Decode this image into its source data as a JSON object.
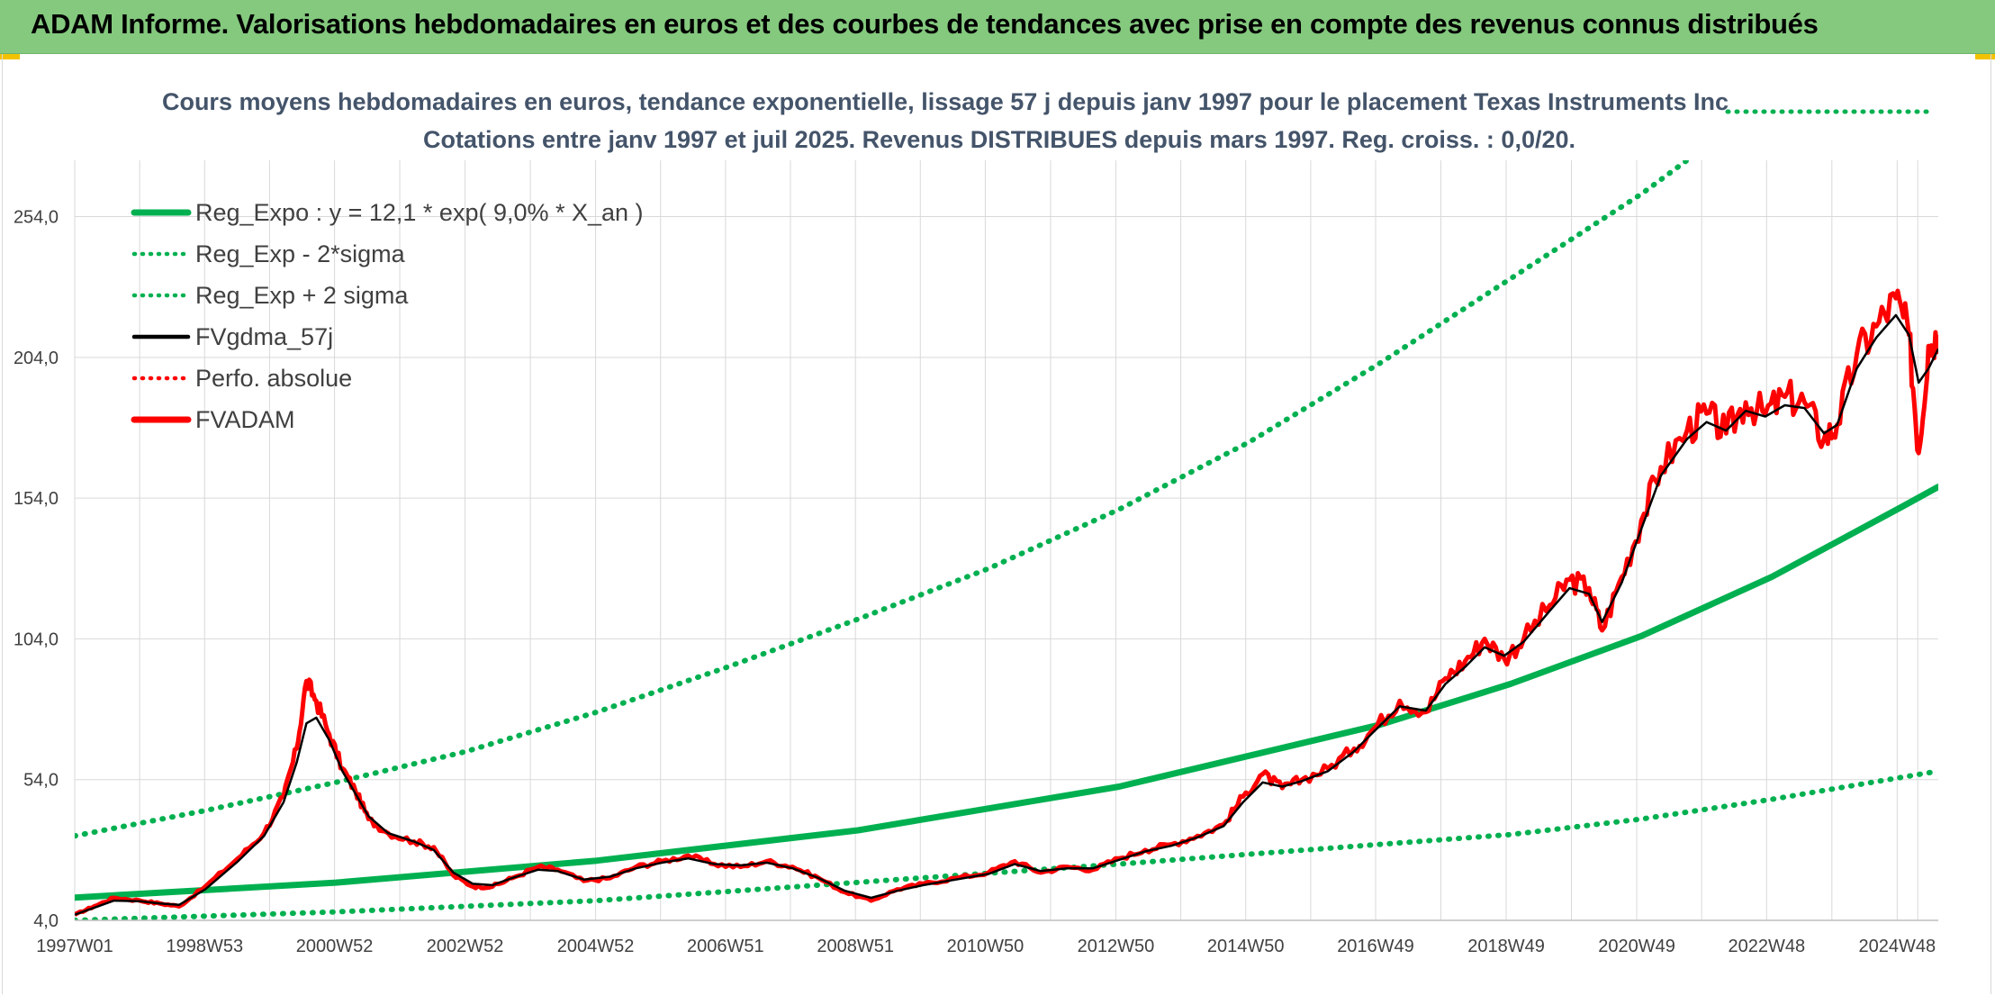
{
  "banner": {
    "title": "ADAM Informe. Valorisations hebdomadaires en euros et des courbes de tendances avec prise en compte des revenus connus distribués"
  },
  "colors": {
    "banner_bg": "#84c97e",
    "trend_green": "#00b050",
    "price_red": "#ff0000",
    "smooth_black": "#000000",
    "grid": "#d9d9d9",
    "title_text": "#44546a"
  },
  "chart_data": {
    "type": "line",
    "title_line1": "Cours moyens hebdomadaires en euros, tendance exponentielle, lissage 57 j depuis janv 1997 pour le placement Texas Instruments Inc",
    "title_line2": "Cotations entre janv 1997 et juil 2025. Revenus DISTRIBUES depuis mars 1997. Reg. croiss. : 0,0/20.",
    "xlabel": "",
    "ylabel": "",
    "x_range": [
      1997.0,
      2025.55
    ],
    "ylim": [
      4.0,
      274.0
    ],
    "y_ticks": [
      {
        "value": 4,
        "label": "4,0"
      },
      {
        "value": 54,
        "label": "54,0"
      },
      {
        "value": 104,
        "label": "104,0"
      },
      {
        "value": 154,
        "label": "154,0"
      },
      {
        "value": 204,
        "label": "204,0"
      },
      {
        "value": 254,
        "label": "254,0"
      }
    ],
    "x_ticks": [
      {
        "label": "1997W01",
        "x": 1997.0
      },
      {
        "label": "1998W53",
        "x": 1998.99
      },
      {
        "label": "2000W52",
        "x": 2000.98
      },
      {
        "label": "2002W52",
        "x": 2002.98
      },
      {
        "label": "2004W52",
        "x": 2004.98
      },
      {
        "label": "2006W51",
        "x": 2006.97
      },
      {
        "label": "2008W51",
        "x": 2008.96
      },
      {
        "label": "2010W50",
        "x": 2010.95
      },
      {
        "label": "2012W50",
        "x": 2012.95
      },
      {
        "label": "2014W50",
        "x": 2014.94
      },
      {
        "label": "2016W49",
        "x": 2016.93
      },
      {
        "label": "2018W49",
        "x": 2018.93
      },
      {
        "label": "2020W49",
        "x": 2020.93
      },
      {
        "label": "2022W48",
        "x": 2022.92
      },
      {
        "label": "2024W48",
        "x": 2024.92
      }
    ],
    "grid": true,
    "legend_position": "top-left",
    "legend": [
      {
        "label": "Reg_Expo : y = 12,1 * exp( 9,0% *  X_an )",
        "style": "solid-thick",
        "color": "#00b050"
      },
      {
        "label": "Reg_Exp - 2*sigma",
        "style": "dotted",
        "color": "#00b050"
      },
      {
        "label": "Reg_Exp + 2 sigma",
        "style": "dotted",
        "color": "#00b050"
      },
      {
        "label": "FVgdma_57j",
        "style": "solid",
        "color": "#000000"
      },
      {
        "label": "Perfo. absolue",
        "style": "dotted",
        "color": "#ff0000"
      },
      {
        "label": "FVADAM",
        "style": "solid-thick",
        "color": "#ff0000"
      }
    ],
    "series": [
      {
        "name": "Reg_Expo : y = 12,1 * exp( 9,0% *  X_an )",
        "points": [
          [
            1997.0,
            12.1
          ],
          [
            2001.0,
            17.4
          ],
          [
            2005.0,
            25.2
          ],
          [
            2009.0,
            36.0
          ],
          [
            2013.0,
            51.5
          ],
          [
            2017.0,
            73.5
          ],
          [
            2019.0,
            88.0
          ],
          [
            2021.0,
            105.0
          ],
          [
            2023.0,
            126.0
          ],
          [
            2025.0,
            151.0
          ],
          [
            2025.55,
            158.0
          ]
        ]
      },
      {
        "name": "Reg_Exp - 2*sigma",
        "points": [
          [
            1997.0,
            4.0
          ],
          [
            2001.0,
            7.0
          ],
          [
            2005.0,
            11.0
          ],
          [
            2009.0,
            17.5
          ],
          [
            2013.0,
            24.0
          ],
          [
            2017.0,
            31.0
          ],
          [
            2019.0,
            34.5
          ],
          [
            2021.0,
            40.0
          ],
          [
            2023.0,
            47.0
          ],
          [
            2025.55,
            57.0
          ]
        ]
      },
      {
        "name": "Reg_Exp + 2 sigma",
        "points": [
          [
            1997.0,
            34.0
          ],
          [
            1999.0,
            43.0
          ],
          [
            2001.0,
            53.0
          ],
          [
            2003.0,
            64.0
          ],
          [
            2005.0,
            78.0
          ],
          [
            2007.0,
            94.0
          ],
          [
            2009.0,
            111.0
          ],
          [
            2011.0,
            129.0
          ],
          [
            2013.0,
            150.0
          ],
          [
            2015.0,
            174.0
          ],
          [
            2017.0,
            202.0
          ],
          [
            2019.0,
            232.0
          ],
          [
            2021.0,
            262.0
          ],
          [
            2021.7,
            274.0
          ]
        ]
      },
      {
        "name": "FVADAM",
        "points": [
          [
            1997.0,
            6.0
          ],
          [
            1997.3,
            9.0
          ],
          [
            1997.6,
            12.0
          ],
          [
            1998.0,
            11.0
          ],
          [
            1998.3,
            10.0
          ],
          [
            1998.6,
            9.0
          ],
          [
            1999.0,
            16.0
          ],
          [
            1999.5,
            26.0
          ],
          [
            1999.9,
            35.0
          ],
          [
            2000.2,
            48.0
          ],
          [
            2000.4,
            65.0
          ],
          [
            2000.55,
            89.0
          ],
          [
            2000.7,
            82.0
          ],
          [
            2000.9,
            70.0
          ],
          [
            2001.1,
            58.0
          ],
          [
            2001.3,
            50.0
          ],
          [
            2001.5,
            40.0
          ],
          [
            2001.8,
            35.0
          ],
          [
            2002.2,
            32.0
          ],
          [
            2002.5,
            30.0
          ],
          [
            2002.8,
            20.0
          ],
          [
            2003.1,
            16.0
          ],
          [
            2003.4,
            16.0
          ],
          [
            2003.7,
            19.0
          ],
          [
            2004.1,
            23.0
          ],
          [
            2004.4,
            22.0
          ],
          [
            2004.8,
            18.0
          ],
          [
            2005.2,
            19.0
          ],
          [
            2005.6,
            23.0
          ],
          [
            2006.0,
            25.0
          ],
          [
            2006.4,
            27.0
          ],
          [
            2006.8,
            24.0
          ],
          [
            2007.2,
            23.0
          ],
          [
            2007.6,
            25.0
          ],
          [
            2008.0,
            23.0
          ],
          [
            2008.4,
            19.0
          ],
          [
            2008.8,
            14.0
          ],
          [
            2009.2,
            11.0
          ],
          [
            2009.6,
            15.0
          ],
          [
            2010.0,
            17.0
          ],
          [
            2010.5,
            19.0
          ],
          [
            2011.0,
            21.0
          ],
          [
            2011.4,
            25.0
          ],
          [
            2011.8,
            21.0
          ],
          [
            2012.2,
            23.0
          ],
          [
            2012.6,
            22.0
          ],
          [
            2013.0,
            26.0
          ],
          [
            2013.4,
            29.0
          ],
          [
            2013.8,
            31.0
          ],
          [
            2014.2,
            34.0
          ],
          [
            2014.6,
            38.0
          ],
          [
            2014.9,
            48.0
          ],
          [
            2015.2,
            56.0
          ],
          [
            2015.5,
            51.0
          ],
          [
            2015.8,
            54.0
          ],
          [
            2016.2,
            58.0
          ],
          [
            2016.6,
            65.0
          ],
          [
            2016.9,
            72.0
          ],
          [
            2017.3,
            82.0
          ],
          [
            2017.7,
            78.0
          ],
          [
            2018.0,
            90.0
          ],
          [
            2018.3,
            96.0
          ],
          [
            2018.6,
            104.0
          ],
          [
            2018.9,
            97.0
          ],
          [
            2019.2,
            104.0
          ],
          [
            2019.6,
            116.0
          ],
          [
            2019.9,
            125.0
          ],
          [
            2020.2,
            122.0
          ],
          [
            2020.4,
            107.0
          ],
          [
            2020.7,
            126.0
          ],
          [
            2021.0,
            146.0
          ],
          [
            2021.3,
            165.0
          ],
          [
            2021.7,
            178.0
          ],
          [
            2022.0,
            184.0
          ],
          [
            2022.3,
            177.0
          ],
          [
            2022.6,
            188.0
          ],
          [
            2022.9,
            184.0
          ],
          [
            2023.2,
            190.0
          ],
          [
            2023.5,
            188.0
          ],
          [
            2023.8,
            175.0
          ],
          [
            2024.0,
            180.0
          ],
          [
            2024.3,
            205.0
          ],
          [
            2024.6,
            215.0
          ],
          [
            2024.9,
            225.0
          ],
          [
            2025.1,
            212.0
          ],
          [
            2025.25,
            170.0
          ],
          [
            2025.4,
            208.0
          ],
          [
            2025.55,
            212.0
          ]
        ]
      },
      {
        "name": "FVgdma_57j",
        "points": [
          [
            1997.0,
            6.0
          ],
          [
            1997.3,
            8.5
          ],
          [
            1997.6,
            11.0
          ],
          [
            1998.0,
            10.8
          ],
          [
            1998.3,
            10.0
          ],
          [
            1998.6,
            9.5
          ],
          [
            1999.0,
            15.0
          ],
          [
            1999.5,
            25.0
          ],
          [
            1999.9,
            34.0
          ],
          [
            2000.2,
            46.0
          ],
          [
            2000.4,
            60.0
          ],
          [
            2000.55,
            74.0
          ],
          [
            2000.7,
            76.0
          ],
          [
            2000.9,
            68.0
          ],
          [
            2001.1,
            57.0
          ],
          [
            2001.3,
            49.0
          ],
          [
            2001.5,
            41.0
          ],
          [
            2001.8,
            35.0
          ],
          [
            2002.2,
            32.0
          ],
          [
            2002.5,
            29.0
          ],
          [
            2002.8,
            21.0
          ],
          [
            2003.1,
            17.0
          ],
          [
            2003.4,
            16.5
          ],
          [
            2003.7,
            19.0
          ],
          [
            2004.1,
            22.0
          ],
          [
            2004.4,
            21.5
          ],
          [
            2004.8,
            18.5
          ],
          [
            2005.2,
            19.5
          ],
          [
            2005.6,
            22.5
          ],
          [
            2006.0,
            24.5
          ],
          [
            2006.4,
            26.0
          ],
          [
            2006.8,
            24.0
          ],
          [
            2007.2,
            23.5
          ],
          [
            2007.6,
            24.5
          ],
          [
            2008.0,
            22.5
          ],
          [
            2008.4,
            19.0
          ],
          [
            2008.8,
            14.5
          ],
          [
            2009.2,
            12.0
          ],
          [
            2009.6,
            14.5
          ],
          [
            2010.0,
            16.5
          ],
          [
            2010.5,
            18.5
          ],
          [
            2011.0,
            20.5
          ],
          [
            2011.4,
            24.0
          ],
          [
            2011.8,
            21.5
          ],
          [
            2012.2,
            22.5
          ],
          [
            2012.6,
            22.5
          ],
          [
            2013.0,
            25.5
          ],
          [
            2013.4,
            28.5
          ],
          [
            2013.8,
            30.5
          ],
          [
            2014.2,
            33.5
          ],
          [
            2014.6,
            37.5
          ],
          [
            2014.9,
            46.0
          ],
          [
            2015.2,
            53.0
          ],
          [
            2015.5,
            51.5
          ],
          [
            2015.8,
            53.5
          ],
          [
            2016.2,
            57.0
          ],
          [
            2016.6,
            64.0
          ],
          [
            2016.9,
            71.0
          ],
          [
            2017.3,
            80.0
          ],
          [
            2017.7,
            78.5
          ],
          [
            2018.0,
            88.0
          ],
          [
            2018.3,
            94.0
          ],
          [
            2018.6,
            101.0
          ],
          [
            2018.9,
            98.0
          ],
          [
            2019.2,
            103.0
          ],
          [
            2019.6,
            114.0
          ],
          [
            2019.9,
            122.0
          ],
          [
            2020.2,
            120.0
          ],
          [
            2020.4,
            110.0
          ],
          [
            2020.7,
            124.0
          ],
          [
            2021.0,
            143.0
          ],
          [
            2021.3,
            162.0
          ],
          [
            2021.7,
            175.0
          ],
          [
            2022.0,
            181.0
          ],
          [
            2022.3,
            178.0
          ],
          [
            2022.6,
            185.0
          ],
          [
            2022.9,
            183.0
          ],
          [
            2023.2,
            187.0
          ],
          [
            2023.5,
            186.0
          ],
          [
            2023.8,
            177.0
          ],
          [
            2024.0,
            180.0
          ],
          [
            2024.3,
            200.0
          ],
          [
            2024.6,
            211.0
          ],
          [
            2024.9,
            219.0
          ],
          [
            2025.1,
            212.0
          ],
          [
            2025.25,
            195.0
          ],
          [
            2025.4,
            200.0
          ],
          [
            2025.55,
            207.0
          ]
        ]
      }
    ]
  }
}
